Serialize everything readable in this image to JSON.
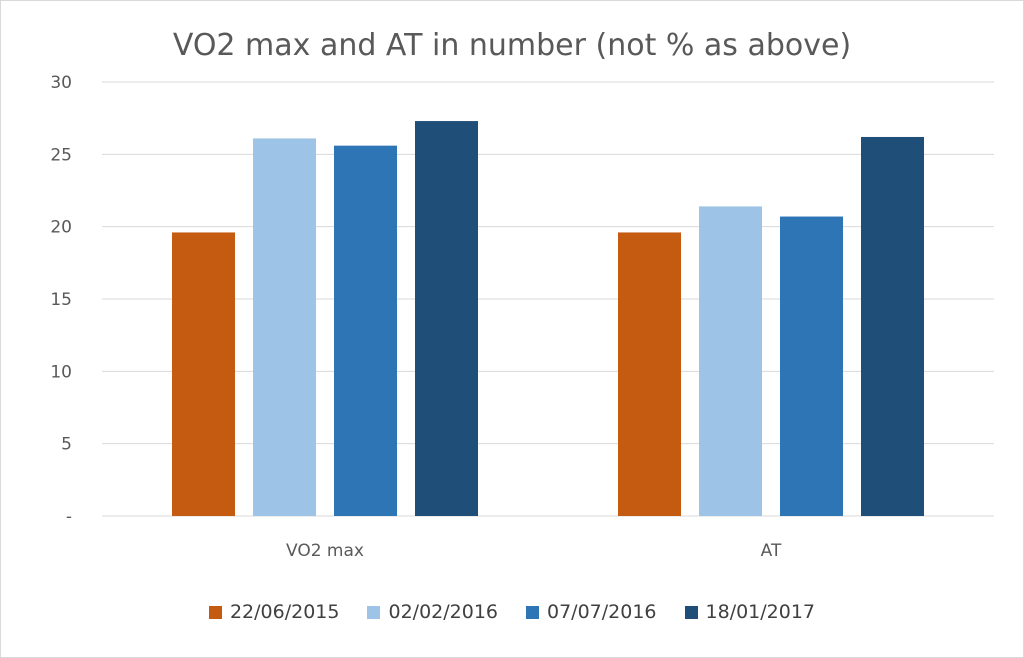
{
  "chart_data": {
    "type": "bar",
    "title": "VO2 max and AT in number (not % as above)",
    "categories": [
      "VO2 max",
      "AT"
    ],
    "series": [
      {
        "name": "22/06/2015",
        "color": "#c55a11",
        "values": [
          19.6,
          19.6
        ]
      },
      {
        "name": "02/02/2016",
        "color": "#9dc3e6",
        "values": [
          26.1,
          21.4
        ]
      },
      {
        "name": "07/07/2016",
        "color": "#2e75b6",
        "values": [
          25.6,
          20.7
        ]
      },
      {
        "name": "18/01/2017",
        "color": "#1f4e79",
        "values": [
          27.3,
          26.2
        ]
      }
    ],
    "ylim": [
      0,
      30
    ],
    "yticks": [
      0,
      5,
      10,
      15,
      20,
      25,
      30
    ],
    "ytick_labels": [
      "-",
      "5",
      "10",
      "15",
      "20",
      "25",
      "30"
    ],
    "xlabel": "",
    "ylabel": "",
    "grid": true,
    "legend_position": "bottom"
  }
}
